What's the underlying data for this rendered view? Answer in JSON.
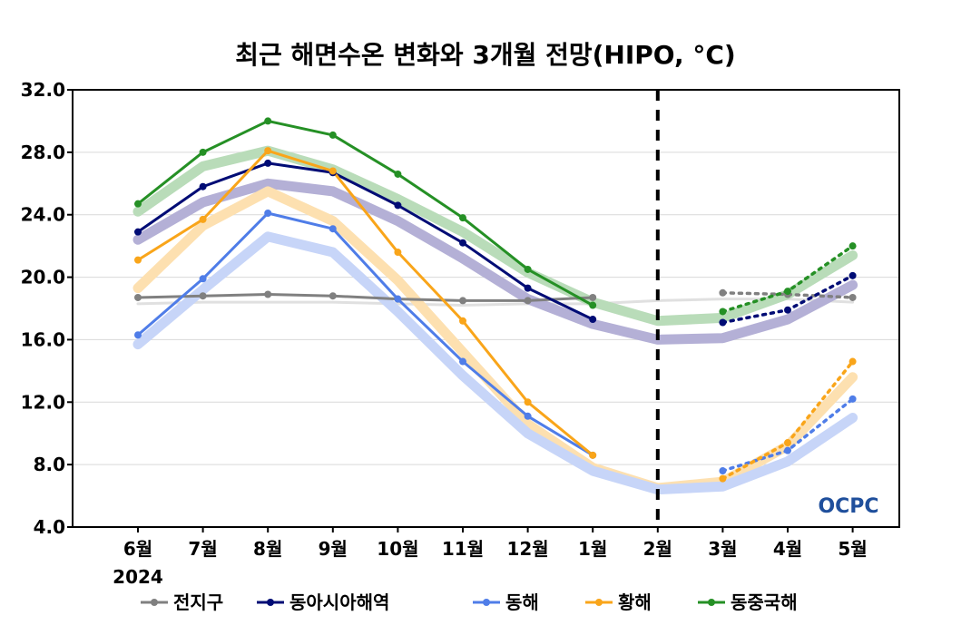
{
  "chart_data": {
    "type": "line",
    "title": "최근 해면수온 변화와 3개월 전망(HIPO, °C)",
    "categories": [
      "6월",
      "7월",
      "8월",
      "9월",
      "10월",
      "11월",
      "12월",
      "1월",
      "2월",
      "3월",
      "4월",
      "5월"
    ],
    "year_label": "2024",
    "ylim": [
      4.0,
      32.0
    ],
    "yticks": [
      "4.0",
      "8.0",
      "12.0",
      "16.0",
      "20.0",
      "24.0",
      "28.0",
      "32.0"
    ],
    "grid": true,
    "legend_position": "bottom",
    "forecast_divider_category": "2월",
    "logo_text": "OCPC",
    "series": [
      {
        "name": "전지구",
        "color": "#808080",
        "band_color": "#e0e0e0",
        "observed": [
          18.7,
          18.8,
          18.9,
          18.8,
          18.6,
          18.5,
          18.5,
          18.7
        ],
        "forecast": [
          19.0,
          18.9,
          18.7
        ],
        "climatology": [
          18.3,
          18.4,
          18.4,
          18.4,
          18.3,
          18.2,
          18.3,
          18.3,
          18.5,
          18.6,
          18.6,
          18.4
        ]
      },
      {
        "name": "동아시아해역",
        "color": "#000c75",
        "band_color": "#b4b0d6",
        "observed": [
          22.9,
          25.8,
          27.3,
          26.7,
          24.6,
          22.2,
          19.3,
          17.3
        ],
        "forecast": [
          17.1,
          17.9,
          20.1
        ],
        "climatology": [
          22.4,
          24.8,
          26.0,
          25.5,
          23.6,
          21.2,
          18.6,
          17.0,
          16.0,
          16.1,
          17.3,
          19.5
        ]
      },
      {
        "name": "동해",
        "color": "#4f7de8",
        "band_color": "#c7d5f8",
        "observed": [
          16.3,
          19.9,
          24.1,
          23.1,
          18.6,
          14.6,
          11.1,
          8.6
        ],
        "forecast": [
          7.6,
          8.9,
          12.2
        ],
        "climatology": [
          15.7,
          19.2,
          22.6,
          21.6,
          17.8,
          13.7,
          10.0,
          7.6,
          6.4,
          6.6,
          8.2,
          11.0
        ]
      },
      {
        "name": "황해",
        "color": "#f9a51a",
        "band_color": "#fde0b0",
        "observed": [
          21.1,
          23.7,
          28.1,
          26.8,
          21.6,
          17.2,
          12.0,
          8.6
        ],
        "forecast": [
          7.1,
          9.4,
          14.6
        ],
        "climatology": [
          19.3,
          23.3,
          25.5,
          23.6,
          19.8,
          15.2,
          10.6,
          7.8,
          6.5,
          6.9,
          9.2,
          13.6
        ]
      },
      {
        "name": "동중국해",
        "color": "#259025",
        "band_color": "#b9dcb9",
        "observed": [
          24.7,
          28.0,
          30.0,
          29.1,
          26.6,
          23.8,
          20.5,
          18.2
        ],
        "forecast": [
          17.8,
          19.1,
          22.0
        ],
        "climatology": [
          24.2,
          27.1,
          28.1,
          26.9,
          25.0,
          22.9,
          20.3,
          18.4,
          17.2,
          17.4,
          18.9,
          21.4
        ]
      }
    ]
  }
}
